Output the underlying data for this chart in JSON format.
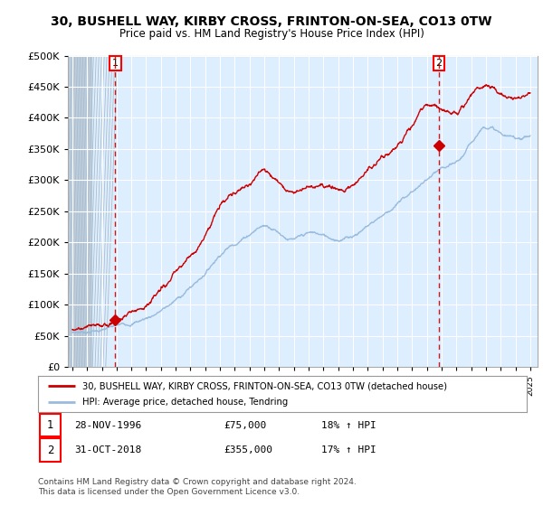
{
  "title": "30, BUSHELL WAY, KIRBY CROSS, FRINTON-ON-SEA, CO13 0TW",
  "subtitle": "Price paid vs. HM Land Registry's House Price Index (HPI)",
  "legend_line1": "30, BUSHELL WAY, KIRBY CROSS, FRINTON-ON-SEA, CO13 0TW (detached house)",
  "legend_line2": "HPI: Average price, detached house, Tendring",
  "copyright": "Contains HM Land Registry data © Crown copyright and database right 2024.\nThis data is licensed under the Open Government Licence v3.0.",
  "property_color": "#cc0000",
  "hpi_color": "#99bbdd",
  "marker_color": "#cc0000",
  "sale1_year": 1996.91,
  "sale1_price": 75000,
  "sale2_year": 2018.83,
  "sale2_price": 355000,
  "ylim": [
    0,
    500000
  ],
  "yticks": [
    0,
    50000,
    100000,
    150000,
    200000,
    250000,
    300000,
    350000,
    400000,
    450000,
    500000
  ],
  "xlim_start": 1993.7,
  "xlim_end": 2025.5,
  "chart_bg_color": "#ddeeff",
  "grid_color": "#ffffff",
  "hatch_color": "#bbccdd",
  "hpi_base": [
    55000,
    57000,
    60000,
    65000,
    71000,
    79000,
    91000,
    107000,
    128000,
    152000,
    182000,
    200000,
    215000,
    228000,
    218000,
    205000,
    213000,
    210000,
    206000,
    212000,
    228000,
    245000,
    262000,
    282000,
    300000,
    315000,
    325000,
    358000,
    388000,
    375000,
    368000,
    372000
  ],
  "prop_base": [
    60000,
    62000,
    65000,
    75000,
    88000,
    103000,
    122000,
    148000,
    178000,
    215000,
    258000,
    278000,
    298000,
    315000,
    300000,
    285000,
    292000,
    292000,
    285000,
    296000,
    316000,
    338000,
    360000,
    388000,
    418000,
    412000,
    412000,
    432000,
    452000,
    437000,
    430000,
    435000
  ],
  "years_base": [
    1994,
    1995,
    1996,
    1997,
    1998,
    1999,
    2000,
    2001,
    2002,
    2003,
    2004,
    2005,
    2006,
    2007,
    2008,
    2009,
    2010,
    2011,
    2012,
    2013,
    2014,
    2015,
    2016,
    2017,
    2018,
    2019,
    2020,
    2021,
    2022,
    2023,
    2024,
    2025
  ]
}
